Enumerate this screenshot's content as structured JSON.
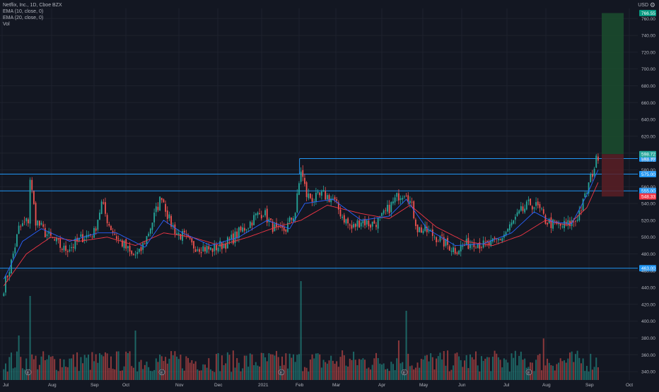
{
  "legend": {
    "symbol_line": "Netflix, Inc., 1D, Cboe BZX",
    "ema10_line": "EMA (10, close, 0)",
    "ema20_line": "EMA (20, close, 0)",
    "vol_line": "Vol"
  },
  "currency": "USD",
  "colors": {
    "background": "#131722",
    "grid": "#1e222d",
    "up": "#26a69a",
    "down": "#ef5350",
    "ema10": "#2962ff",
    "ema20": "#f23645",
    "level_line": "#2196f3",
    "axis_text": "#b2b5be",
    "profit_zone": "#1b4d2e",
    "loss_zone": "#5a1e24"
  },
  "chart_data": {
    "type": "candlestick",
    "symbol": "Netflix, Inc.",
    "interval": "1D",
    "exchange": "Cboe BZX",
    "x_tick_labels": [
      "Jul",
      "Aug",
      "Sep",
      "Oct",
      "Nov",
      "Dec",
      "2021",
      "Feb",
      "Mar",
      "Apr",
      "May",
      "Jun",
      "Jul",
      "Aug",
      "Sep",
      "Oct"
    ],
    "y_tick_labels": [
      340,
      360,
      380,
      400,
      420,
      440,
      460,
      480,
      500,
      520,
      540,
      560,
      580,
      600,
      620,
      640,
      660,
      680,
      700,
      720,
      740,
      760
    ],
    "ylim": [
      330,
      772
    ],
    "price_series_anchors": [
      [
        0,
        440
      ],
      [
        4,
        470
      ],
      [
        8,
        510
      ],
      [
        13,
        520
      ],
      [
        14,
        570
      ],
      [
        17,
        520
      ],
      [
        22,
        505
      ],
      [
        27,
        495
      ],
      [
        32,
        485
      ],
      [
        37,
        490
      ],
      [
        42,
        500
      ],
      [
        48,
        505
      ],
      [
        52,
        540
      ],
      [
        56,
        515
      ],
      [
        60,
        500
      ],
      [
        64,
        490
      ],
      [
        68,
        478
      ],
      [
        72,
        480
      ],
      [
        76,
        500
      ],
      [
        80,
        525
      ],
      [
        84,
        550
      ],
      [
        88,
        520
      ],
      [
        92,
        505
      ],
      [
        96,
        500
      ],
      [
        100,
        490
      ],
      [
        105,
        488
      ],
      [
        110,
        485
      ],
      [
        115,
        490
      ],
      [
        120,
        495
      ],
      [
        125,
        505
      ],
      [
        130,
        515
      ],
      [
        134,
        525
      ],
      [
        138,
        530
      ],
      [
        142,
        515
      ],
      [
        146,
        505
      ],
      [
        150,
        510
      ],
      [
        155,
        530
      ],
      [
        158,
        580
      ],
      [
        161,
        550
      ],
      [
        165,
        545
      ],
      [
        170,
        550
      ],
      [
        175,
        545
      ],
      [
        180,
        525
      ],
      [
        185,
        510
      ],
      [
        190,
        520
      ],
      [
        195,
        515
      ],
      [
        200,
        520
      ],
      [
        205,
        535
      ],
      [
        210,
        550
      ],
      [
        214,
        555
      ],
      [
        217,
        535
      ],
      [
        220,
        510
      ],
      [
        225,
        507
      ],
      [
        230,
        500
      ],
      [
        235,
        492
      ],
      [
        240,
        485
      ],
      [
        245,
        490
      ],
      [
        250,
        495
      ],
      [
        255,
        490
      ],
      [
        260,
        492
      ],
      [
        265,
        500
      ],
      [
        270,
        515
      ],
      [
        275,
        530
      ],
      [
        280,
        540
      ],
      [
        284,
        535
      ],
      [
        288,
        520
      ],
      [
        292,
        515
      ],
      [
        296,
        513
      ],
      [
        300,
        515
      ],
      [
        304,
        520
      ],
      [
        308,
        540
      ],
      [
        312,
        570
      ],
      [
        316,
        598
      ]
    ],
    "ema10_anchors": [
      [
        0,
        450
      ],
      [
        10,
        495
      ],
      [
        20,
        510
      ],
      [
        35,
        495
      ],
      [
        50,
        505
      ],
      [
        60,
        505
      ],
      [
        75,
        488
      ],
      [
        85,
        520
      ],
      [
        95,
        505
      ],
      [
        110,
        490
      ],
      [
        125,
        500
      ],
      [
        140,
        520
      ],
      [
        152,
        510
      ],
      [
        160,
        540
      ],
      [
        175,
        545
      ],
      [
        190,
        520
      ],
      [
        205,
        525
      ],
      [
        214,
        545
      ],
      [
        225,
        510
      ],
      [
        240,
        490
      ],
      [
        255,
        492
      ],
      [
        270,
        505
      ],
      [
        282,
        530
      ],
      [
        292,
        518
      ],
      [
        302,
        516
      ],
      [
        310,
        550
      ],
      [
        316,
        580
      ]
    ],
    "ema20_anchors": [
      [
        0,
        442
      ],
      [
        12,
        480
      ],
      [
        25,
        500
      ],
      [
        40,
        495
      ],
      [
        55,
        500
      ],
      [
        70,
        490
      ],
      [
        85,
        505
      ],
      [
        100,
        500
      ],
      [
        115,
        490
      ],
      [
        130,
        500
      ],
      [
        145,
        512
      ],
      [
        158,
        520
      ],
      [
        172,
        538
      ],
      [
        190,
        528
      ],
      [
        205,
        522
      ],
      [
        216,
        538
      ],
      [
        230,
        512
      ],
      [
        245,
        495
      ],
      [
        260,
        490
      ],
      [
        275,
        502
      ],
      [
        288,
        520
      ],
      [
        300,
        514
      ],
      [
        310,
        535
      ],
      [
        316,
        565
      ]
    ],
    "horizontal_levels": [
      {
        "price": 593.39,
        "label": "593.39",
        "start_bar": 158
      },
      {
        "price": 575.0,
        "label": "575.00",
        "start_bar": 0
      },
      {
        "price": 555.0,
        "label": "555.00",
        "start_bar": 0
      },
      {
        "price": 463.0,
        "label": "463.00",
        "start_bar": 0
      }
    ],
    "current_price_label": "598.72",
    "last_price_label": "598.72",
    "long_position": {
      "entry": 598.72,
      "target": 766.55,
      "stop": 548.33,
      "target_label": "766.55",
      "entry_label": "598.72",
      "stop_label": "548.33"
    },
    "volume_spikes": [
      [
        14,
        0.85
      ],
      [
        158,
        1.0
      ],
      [
        214,
        0.7
      ],
      [
        287,
        0.42
      ],
      [
        8,
        0.45
      ],
      [
        70,
        0.5
      ],
      [
        210,
        0.4
      ],
      [
        180,
        0.3
      ]
    ],
    "earnings_markers": [
      "E",
      "E",
      "E",
      "E",
      "E"
    ]
  }
}
